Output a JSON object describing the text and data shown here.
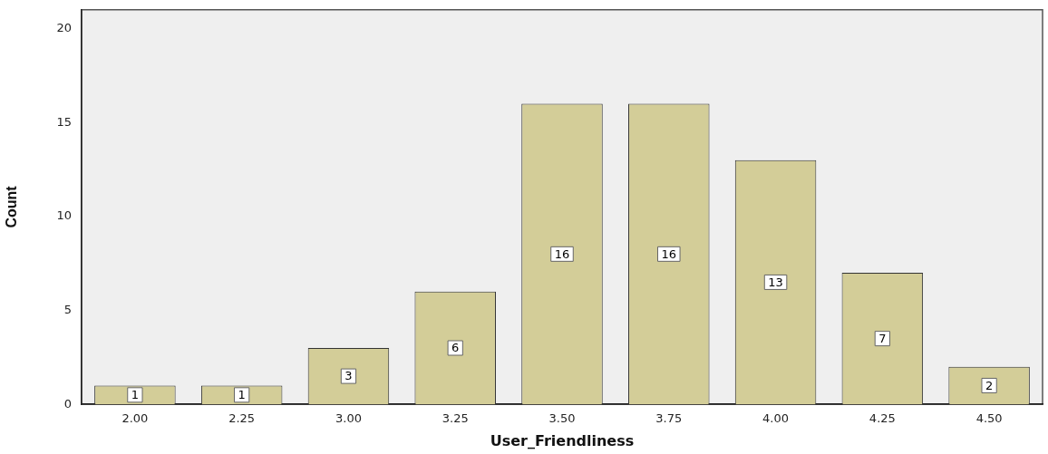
{
  "chart_data": {
    "type": "bar",
    "xlabel": "User_Friendliness",
    "ylabel": "Count",
    "categories": [
      "2.00",
      "2.25",
      "3.00",
      "3.25",
      "3.50",
      "3.75",
      "4.00",
      "4.25",
      "4.50"
    ],
    "values": [
      1,
      1,
      3,
      6,
      16,
      16,
      13,
      7,
      2
    ],
    "color": "#d3cd98",
    "ylim": [
      0,
      21
    ],
    "yticks": [
      0,
      5,
      10,
      15,
      20
    ],
    "grid": false,
    "legend": false,
    "data_labels": true
  }
}
